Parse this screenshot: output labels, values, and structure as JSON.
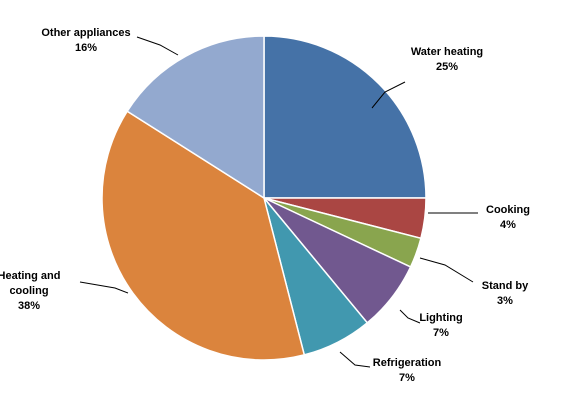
{
  "chart_data": {
    "type": "pie",
    "title": "",
    "start_angle_deg": 0,
    "direction": "clockwise",
    "slices": [
      {
        "label_lines": [
          "Water heating"
        ],
        "percent_label": "25%",
        "value": 25,
        "color": "#4572A7"
      },
      {
        "label_lines": [
          "Cooking"
        ],
        "percent_label": "4%",
        "value": 4,
        "color": "#AA4643"
      },
      {
        "label_lines": [
          "Stand by"
        ],
        "percent_label": "3%",
        "value": 3,
        "color": "#89A54E"
      },
      {
        "label_lines": [
          "Lighting"
        ],
        "percent_label": "7%",
        "value": 7,
        "color": "#71588F"
      },
      {
        "label_lines": [
          "Refrigeration"
        ],
        "percent_label": "7%",
        "value": 7,
        "color": "#4198AF"
      },
      {
        "label_lines": [
          "Heating and",
          "cooling"
        ],
        "percent_label": "38%",
        "value": 38,
        "color": "#DB843D"
      },
      {
        "label_lines": [
          "Other appliances"
        ],
        "percent_label": "16%",
        "value": 16,
        "color": "#93A9CF"
      }
    ]
  }
}
